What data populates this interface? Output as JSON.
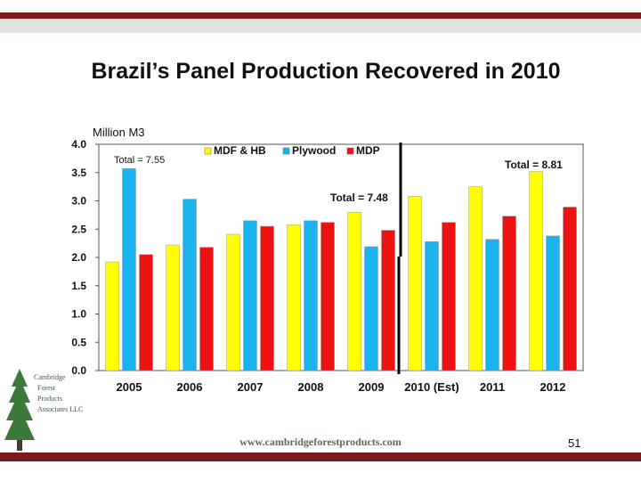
{
  "slide": {
    "title": "Brazil’s Panel Production Recovered in 2010",
    "page_number": "51",
    "footer_url": "www.cambridgeforestproducts.com",
    "logo_lines": [
      "Cambridge",
      "Forest",
      "Products",
      "Associates LLC"
    ]
  },
  "colors": {
    "mdf": "#ffff00",
    "plywood": "#1ab3ee",
    "mdp": "#ee1111",
    "frame": "#7a1a1a"
  },
  "chart_data": {
    "type": "bar",
    "ylabel": "Million M3",
    "ylim": [
      0,
      4.0
    ],
    "yticks": [
      "0.0",
      "0.5",
      "1.0",
      "1.5",
      "2.0",
      "2.5",
      "3.0",
      "3.5",
      "4.0"
    ],
    "categories": [
      "2005",
      "2006",
      "2007",
      "2008",
      "2009",
      "2010 (Est)",
      "2011",
      "2012"
    ],
    "series": [
      {
        "name": "MDF & HB",
        "values": [
          1.92,
          2.22,
          2.41,
          2.58,
          2.8,
          3.08,
          3.25,
          3.52
        ]
      },
      {
        "name": "Plywood",
        "values": [
          3.57,
          3.03,
          2.65,
          2.65,
          2.19,
          2.28,
          2.32,
          2.38
        ]
      },
      {
        "name": "MDP",
        "values": [
          2.05,
          2.18,
          2.55,
          2.62,
          2.48,
          2.62,
          2.73,
          2.89
        ]
      }
    ],
    "annotations": {
      "left": "Total = 7.55",
      "middle": "Total = 7.48",
      "right": "Total = 8.81"
    },
    "divider_after_category": "2009",
    "legend_position": "top"
  }
}
